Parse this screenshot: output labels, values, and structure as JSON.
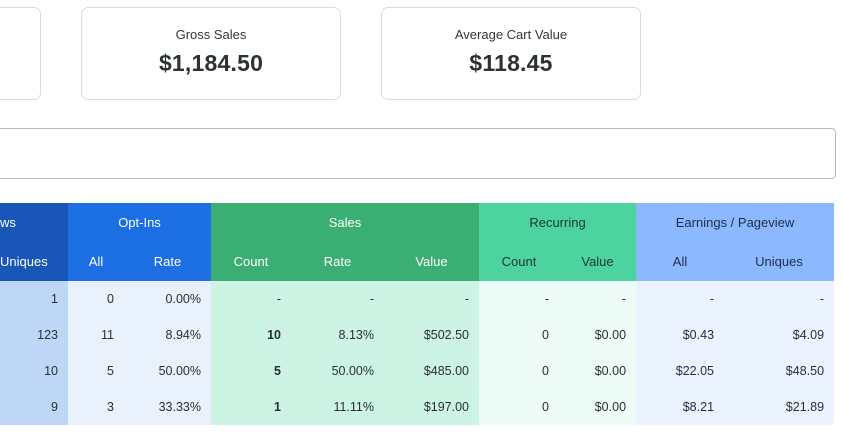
{
  "cards": [
    {
      "label": "",
      "value": ""
    },
    {
      "label": "Gross Sales",
      "value": "$1,184.50"
    },
    {
      "label": "Average Cart Value",
      "value": "$118.45"
    }
  ],
  "table": {
    "groups": {
      "views": "ws",
      "optins": "Opt-Ins",
      "sales": "Sales",
      "recurring": "Recurring",
      "epv": "Earnings / Pageview"
    },
    "subheaders": {
      "views_uniques": "Uniques",
      "optins_all": "All",
      "optins_rate": "Rate",
      "sales_count": "Count",
      "sales_rate": "Rate",
      "sales_value": "Value",
      "rec_count": "Count",
      "rec_value": "Value",
      "epv_all": "All",
      "epv_uniques": "Uniques"
    },
    "rows": [
      {
        "uniques": "1",
        "opt_all": "0",
        "opt_rate": "0.00%",
        "sales_count": "-",
        "sales_rate": "-",
        "sales_value": "-",
        "rec_count": "-",
        "rec_value": "-",
        "epv_all": "-",
        "epv_uniques": "-"
      },
      {
        "uniques": "123",
        "opt_all": "11",
        "opt_rate": "8.94%",
        "sales_count": "10",
        "sales_rate": "8.13%",
        "sales_value": "$502.50",
        "rec_count": "0",
        "rec_value": "$0.00",
        "epv_all": "$0.43",
        "epv_uniques": "$4.09"
      },
      {
        "uniques": "10",
        "opt_all": "5",
        "opt_rate": "50.00%",
        "sales_count": "5",
        "sales_rate": "50.00%",
        "sales_value": "$485.00",
        "rec_count": "0",
        "rec_value": "$0.00",
        "epv_all": "$22.05",
        "epv_uniques": "$48.50"
      },
      {
        "uniques": "9",
        "opt_all": "3",
        "opt_rate": "33.33%",
        "sales_count": "1",
        "sales_rate": "11.11%",
        "sales_value": "$197.00",
        "rec_count": "0",
        "rec_value": "$0.00",
        "epv_all": "$8.21",
        "epv_uniques": "$21.89"
      }
    ]
  }
}
